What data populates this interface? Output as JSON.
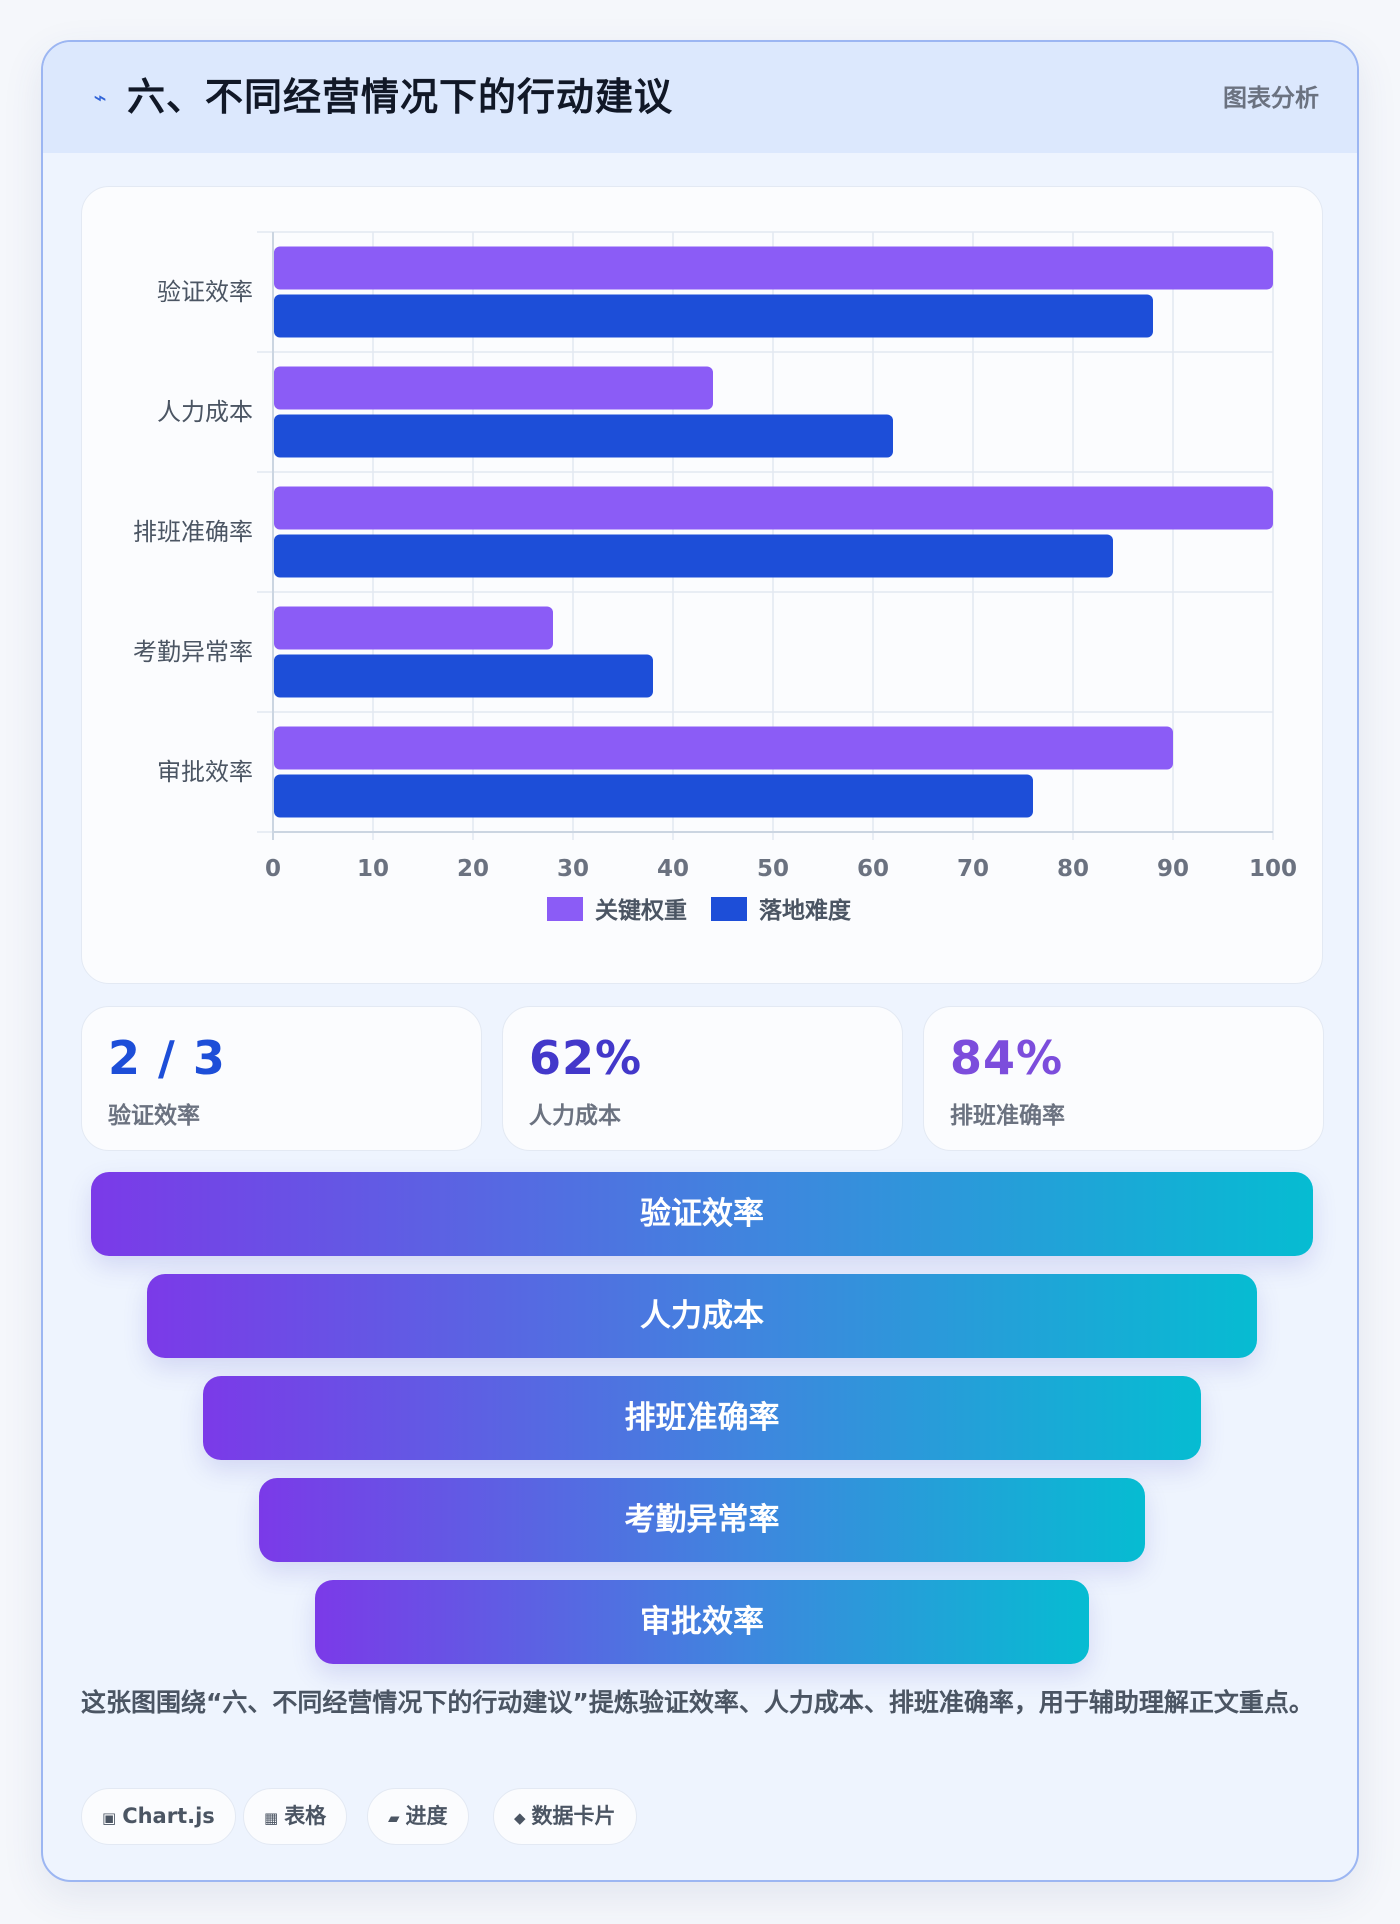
{
  "header": {
    "icon": "lightning-icon",
    "title": "六、不同经营情况下的行动建议",
    "label": "图表分析"
  },
  "chart_data": {
    "type": "bar",
    "orientation": "horizontal",
    "categories": [
      "验证效率",
      "人力成本",
      "排班准确率",
      "考勤异常率",
      "审批效率"
    ],
    "series": [
      {
        "name": "关键权重",
        "color": "#8b5cf6",
        "values": [
          100,
          44,
          100,
          28,
          90
        ]
      },
      {
        "name": "落地难度",
        "color": "#1d4ed8",
        "values": [
          88,
          62,
          84,
          38,
          76
        ]
      }
    ],
    "xlim": [
      0,
      100
    ],
    "xticks": [
      0,
      10,
      20,
      30,
      40,
      50,
      60,
      70,
      80,
      90,
      100
    ],
    "grid": true,
    "legend": "bottom"
  },
  "stats": [
    {
      "value": "2 / 3",
      "label": "验证效率",
      "color": "#1d4ed8"
    },
    {
      "value": "62%",
      "label": "人力成本",
      "color": "#4338ca"
    },
    {
      "value": "84%",
      "label": "排班准确率",
      "color": "#7c4ddc"
    }
  ],
  "funnel": [
    "验证效率",
    "人力成本",
    "排班准确率",
    "考勤异常率",
    "审批效率"
  ],
  "description": "这张图围绕“六、不同经营情况下的行动建议”提炼验证效率、人力成本、排班准确率，用于辅助理解正文重点。",
  "tags": [
    {
      "icon": "▣",
      "icon_name": "chart-icon",
      "label": "Chart.js"
    },
    {
      "icon": "▦",
      "icon_name": "table-icon",
      "label": "表格"
    },
    {
      "icon": "▰",
      "icon_name": "progress-icon",
      "label": "进度"
    },
    {
      "icon": "◆",
      "icon_name": "diamond-icon",
      "label": "数据卡片"
    }
  ]
}
